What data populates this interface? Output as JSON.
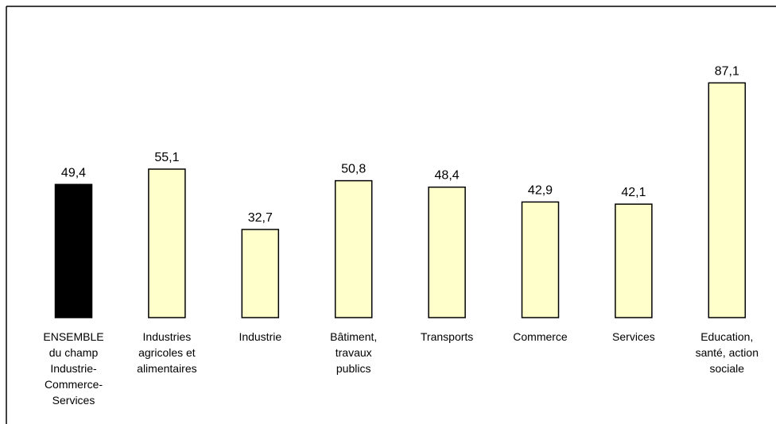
{
  "chart_data": {
    "type": "bar",
    "title": "",
    "xlabel": "",
    "ylabel": "",
    "ylim": [
      0,
      100
    ],
    "grid": false,
    "legend": "none",
    "categories": [
      [
        "ENSEMBLE",
        "du champ",
        "Industrie-",
        "Commerce-",
        "Services"
      ],
      [
        "Industries",
        "agricoles et",
        "alimentaires"
      ],
      [
        "Industrie"
      ],
      [
        "Bâtiment,",
        "travaux",
        "publics"
      ],
      [
        "Transports"
      ],
      [
        "Commerce"
      ],
      [
        "Services"
      ],
      [
        "Education,",
        "santé, action",
        "sociale"
      ]
    ],
    "values": [
      49.4,
      55.1,
      32.7,
      50.8,
      48.4,
      42.9,
      42.1,
      87.1
    ],
    "value_labels": [
      "49,4",
      "55,1",
      "32,7",
      "50,8",
      "48,4",
      "42,9",
      "42,1",
      "87,1"
    ],
    "colors": {
      "highlight": "#000000",
      "bar": "#ffffcc",
      "border": "#000000"
    }
  }
}
